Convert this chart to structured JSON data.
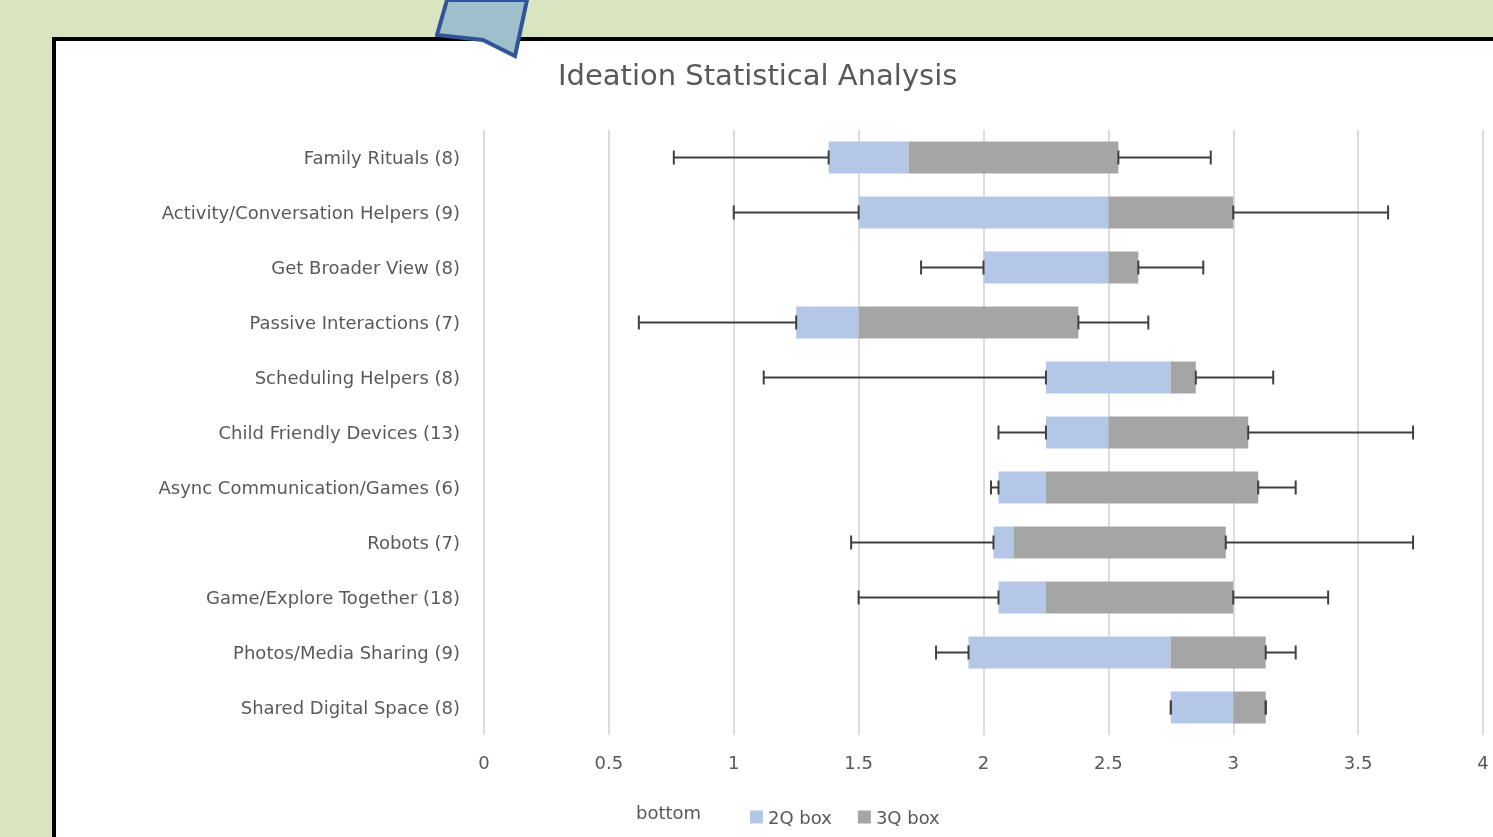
{
  "chart_data": {
    "type": "bar",
    "title": "Ideation Statistical Analysis",
    "orientation": "horizontal",
    "categories": [
      "Family Rituals (8)",
      "Activity/Conversation Helpers (9)",
      "Get Broader View (8)",
      "Passive Interactions (7)",
      "Scheduling Helpers (8)",
      "Child Friendly Devices (13)",
      "Async Communication/Games (6)",
      "Robots (7)",
      "Game/Explore Together (18)",
      "Photos/Media Sharing (9)",
      "Shared Digital Space (8)"
    ],
    "series": [
      {
        "name": "2Q box",
        "color": "#b4c7e7",
        "base": [
          1.38,
          1.5,
          2.0,
          1.25,
          2.25,
          2.25,
          2.06,
          2.04,
          2.06,
          1.94,
          2.75
        ],
        "values": [
          0.32,
          1.0,
          0.5,
          0.25,
          0.5,
          0.25,
          0.19,
          0.08,
          0.19,
          0.81,
          0.25
        ],
        "errors": [
          [
            0.76,
            1.38
          ],
          [
            1.0,
            1.5
          ],
          [
            1.75,
            2.0
          ],
          [
            0.62,
            1.25
          ],
          [
            1.12,
            2.25
          ],
          [
            2.06,
            2.25
          ],
          [
            2.03,
            2.06
          ],
          [
            1.47,
            2.04
          ],
          [
            1.5,
            2.06
          ],
          [
            1.81,
            1.94
          ],
          [
            2.75,
            2.75
          ]
        ]
      },
      {
        "name": "3Q box",
        "color": "#a5a5a5",
        "base": [
          1.7,
          2.5,
          2.5,
          1.5,
          2.75,
          2.5,
          2.25,
          2.12,
          2.25,
          2.75,
          3.0
        ],
        "values": [
          0.84,
          0.5,
          0.12,
          0.88,
          0.1,
          0.56,
          0.85,
          0.85,
          0.75,
          0.38,
          0.13
        ],
        "errors": [
          [
            2.54,
            2.91
          ],
          [
            3.0,
            3.62
          ],
          [
            2.62,
            2.88
          ],
          [
            2.38,
            2.66
          ],
          [
            2.85,
            3.16
          ],
          [
            3.06,
            3.72
          ],
          [
            3.1,
            3.25
          ],
          [
            2.97,
            3.72
          ],
          [
            3.0,
            3.38
          ],
          [
            3.13,
            3.25
          ],
          [
            3.13,
            3.13
          ]
        ]
      }
    ],
    "annotations": [
      "bottom"
    ],
    "xlim": [
      0,
      4
    ],
    "xticks": [
      0,
      0.5,
      1,
      1.5,
      2,
      2.5,
      3,
      3.5,
      4
    ],
    "grid": "x",
    "legend": "bottom"
  }
}
